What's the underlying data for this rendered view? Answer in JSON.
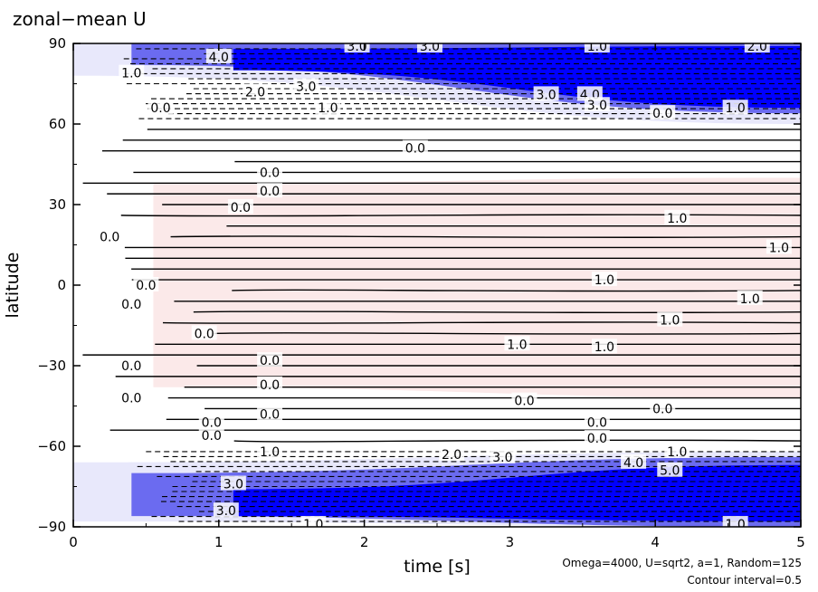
{
  "chart_data": {
    "type": "contour",
    "title": "zonal−mean U",
    "xlabel": "time [s]",
    "ylabel": "latitude",
    "xlim": [
      0,
      5
    ],
    "ylim": [
      -90,
      90
    ],
    "x_ticks": [
      0,
      1,
      2,
      3,
      4,
      5
    ],
    "x_tick_labels": [
      "0",
      "1",
      "2",
      "3",
      "4",
      "5"
    ],
    "y_ticks": [
      -90,
      -60,
      -30,
      0,
      30,
      60,
      90
    ],
    "y_tick_labels": [
      "−90",
      "−60",
      "−30",
      "0",
      "30",
      "60",
      "90"
    ],
    "notes": [
      "Omega=4000, U=sqrt2, a=1, Random=125",
      "Contour interval=0.5"
    ],
    "contour_interval": 0.5,
    "colors": {
      "negative_strong": "#0000ff",
      "negative_mid": "#6b6bf0",
      "negative_light": "#e8e8fb",
      "positive_light": "#fbe9e9",
      "lines": "#000000"
    },
    "contour_labels": [
      {
        "text": "3.0",
        "x": 1.95,
        "y": 89
      },
      {
        "text": "3.0",
        "x": 2.45,
        "y": 89
      },
      {
        "text": "1.0",
        "x": 3.6,
        "y": 89
      },
      {
        "text": "2.0",
        "x": 4.7,
        "y": 89
      },
      {
        "text": "1.0",
        "x": 0.4,
        "y": 79
      },
      {
        "text": "4.0",
        "x": 1.0,
        "y": 85
      },
      {
        "text": "2.0",
        "x": 1.25,
        "y": 72
      },
      {
        "text": "3.0",
        "x": 1.6,
        "y": 74
      },
      {
        "text": "3.0",
        "x": 3.25,
        "y": 71
      },
      {
        "text": "4.0",
        "x": 3.55,
        "y": 71
      },
      {
        "text": "3.0",
        "x": 3.6,
        "y": 67
      },
      {
        "text": "1.0",
        "x": 1.75,
        "y": 66
      },
      {
        "text": "1.0",
        "x": 4.55,
        "y": 66
      },
      {
        "text": "0.0",
        "x": 0.6,
        "y": 66
      },
      {
        "text": "0.0",
        "x": 4.05,
        "y": 64
      },
      {
        "text": "0.0",
        "x": 2.35,
        "y": 51
      },
      {
        "text": "0.0",
        "x": 1.35,
        "y": 42
      },
      {
        "text": "0.0",
        "x": 1.35,
        "y": 35
      },
      {
        "text": "0.0",
        "x": 1.15,
        "y": 29
      },
      {
        "text": "1.0",
        "x": 4.15,
        "y": 25
      },
      {
        "text": "0.0",
        "x": 0.25,
        "y": 18
      },
      {
        "text": "1.0",
        "x": 4.85,
        "y": 14
      },
      {
        "text": "1.0",
        "x": 3.65,
        "y": 2
      },
      {
        "text": "0.0",
        "x": 0.5,
        "y": 0
      },
      {
        "text": "1.0",
        "x": 4.65,
        "y": -5
      },
      {
        "text": "0.0",
        "x": 0.4,
        "y": -7
      },
      {
        "text": "1.0",
        "x": 4.1,
        "y": -13
      },
      {
        "text": "0.0",
        "x": 0.9,
        "y": -18
      },
      {
        "text": "1.0",
        "x": 3.05,
        "y": -22
      },
      {
        "text": "1.0",
        "x": 3.65,
        "y": -23
      },
      {
        "text": "0.0",
        "x": 1.35,
        "y": -28
      },
      {
        "text": "0.0",
        "x": 0.4,
        "y": -30
      },
      {
        "text": "0.0",
        "x": 1.35,
        "y": -37
      },
      {
        "text": "0.0",
        "x": 0.4,
        "y": -42
      },
      {
        "text": "0.0",
        "x": 3.1,
        "y": -43
      },
      {
        "text": "0.0",
        "x": 4.05,
        "y": -46
      },
      {
        "text": "0.0",
        "x": 1.35,
        "y": -48
      },
      {
        "text": "0.0",
        "x": 0.95,
        "y": -51
      },
      {
        "text": "0.0",
        "x": 3.6,
        "y": -51
      },
      {
        "text": "0.0",
        "x": 0.95,
        "y": -56
      },
      {
        "text": "0.0",
        "x": 3.6,
        "y": -57
      },
      {
        "text": "1.0",
        "x": 1.35,
        "y": -62
      },
      {
        "text": "1.0",
        "x": 4.15,
        "y": -62
      },
      {
        "text": "2.0",
        "x": 2.6,
        "y": -63
      },
      {
        "text": "3.0",
        "x": 2.95,
        "y": -64
      },
      {
        "text": "4.0",
        "x": 3.85,
        "y": -66
      },
      {
        "text": "5.0",
        "x": 4.1,
        "y": -69
      },
      {
        "text": "3.0",
        "x": 1.1,
        "y": -74
      },
      {
        "text": "3.0",
        "x": 1.05,
        "y": -84
      },
      {
        "text": "1.0",
        "x": 1.65,
        "y": -89
      },
      {
        "text": "1.0",
        "x": 4.55,
        "y": -89
      }
    ]
  }
}
